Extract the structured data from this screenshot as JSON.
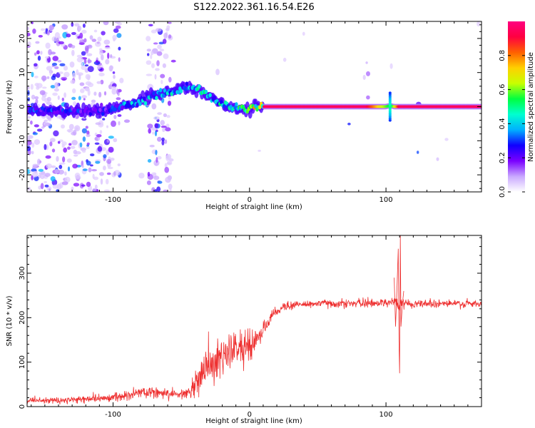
{
  "title": "S122.2022.361.16.54.E26",
  "chart_data": [
    {
      "type": "heatmap",
      "title": "S122.2022.361.16.54.E26",
      "xlabel": "Height of straight line (km)",
      "ylabel": "Frequency (Hz)",
      "xlim": [
        -163,
        170
      ],
      "ylim": [
        -25,
        25
      ],
      "x_ticks": [
        -100,
        0,
        100
      ],
      "x_tick_labels": [
        "-100",
        "0",
        "100"
      ],
      "y_ticks": [
        -20,
        -10,
        0,
        10,
        20
      ],
      "y_tick_labels": [
        "-20",
        "-10",
        "0",
        "10",
        "20"
      ],
      "colorbar": {
        "label": "Normalized spectral amplitude",
        "range": [
          0.0,
          1.0
        ],
        "ticks": [
          0.0,
          0.2,
          0.4,
          0.6,
          0.8
        ],
        "tick_labels": [
          "0.0",
          "0.2",
          "0.4",
          "0.6",
          "0.8"
        ],
        "colors": [
          "#ffffff",
          "#c9a8ff",
          "#7a00ff",
          "#1000ff",
          "#00b0ff",
          "#00ffd0",
          "#00ff40",
          "#c8ff00",
          "#ffd000",
          "#ff6000",
          "#ff0040",
          "#ff0080"
        ]
      },
      "ridge_center_freq": {
        "x": [
          -163,
          -140,
          -120,
          -105,
          -95,
          -85,
          -75,
          -65,
          -55,
          -45,
          -38,
          -30,
          -22,
          -15,
          -8,
          -3,
          5,
          10,
          50,
          90,
          100,
          103,
          106,
          120,
          170
        ],
        "y": [
          -1,
          -1.2,
          -1.3,
          -1,
          0,
          1.2,
          2.8,
          3.8,
          4.8,
          5.5,
          5,
          3.2,
          1.2,
          0,
          -0.5,
          -0.8,
          -0.3,
          0,
          0,
          0,
          0,
          0.3,
          0,
          0,
          0
        ]
      },
      "ridge_amplitude": {
        "x": [
          -163,
          -105,
          -90,
          -70,
          -50,
          -35,
          -20,
          -5,
          10,
          30,
          85,
          95,
          104,
          110,
          170
        ],
        "y": [
          0.35,
          0.3,
          0.45,
          0.5,
          0.5,
          0.55,
          0.55,
          0.6,
          0.95,
          0.95,
          0.95,
          0.7,
          0.5,
          0.95,
          0.95
        ]
      }
    },
    {
      "type": "line",
      "xlabel": "Height of straight line (km)",
      "ylabel": "SNR (10 * v/v)",
      "xlim": [
        -163,
        170
      ],
      "ylim": [
        0,
        385
      ],
      "x_ticks": [
        -100,
        0,
        100
      ],
      "x_tick_labels": [
        "-100",
        "0",
        "100"
      ],
      "y_ticks": [
        0,
        100,
        200,
        300
      ],
      "y_tick_labels": [
        "0",
        "100",
        "200",
        "300"
      ],
      "color": "#ee3030",
      "envelope": {
        "x": [
          -163,
          -130,
          -110,
          -95,
          -85,
          -75,
          -60,
          -50,
          -45,
          -40,
          -35,
          -30,
          -25,
          -20,
          -15,
          -10,
          -5,
          0,
          5,
          10,
          15,
          20,
          25,
          30,
          40,
          50,
          60,
          80,
          100,
          106,
          109,
          111,
          113,
          120,
          140,
          170
        ],
        "mean": [
          12,
          15,
          18,
          22,
          28,
          33,
          30,
          28,
          32,
          50,
          75,
          90,
          100,
          110,
          120,
          128,
          132,
          138,
          150,
          170,
          195,
          215,
          225,
          228,
          230,
          232,
          232,
          232,
          234,
          238,
          225,
          230,
          232,
          232,
          232,
          230
        ],
        "spread": [
          5,
          6,
          7,
          8,
          10,
          12,
          10,
          8,
          15,
          30,
          35,
          35,
          35,
          35,
          30,
          30,
          30,
          25,
          20,
          15,
          10,
          8,
          8,
          8,
          8,
          8,
          8,
          8,
          8,
          10,
          10,
          10,
          8,
          8,
          8,
          8
        ]
      },
      "spikes": {
        "x": [
          106,
          107,
          108,
          109,
          109.5,
          110,
          110.5,
          111,
          112,
          113
        ],
        "y": [
          290,
          180,
          260,
          355,
          150,
          75,
          385,
          180,
          230,
          260
        ]
      }
    }
  ]
}
